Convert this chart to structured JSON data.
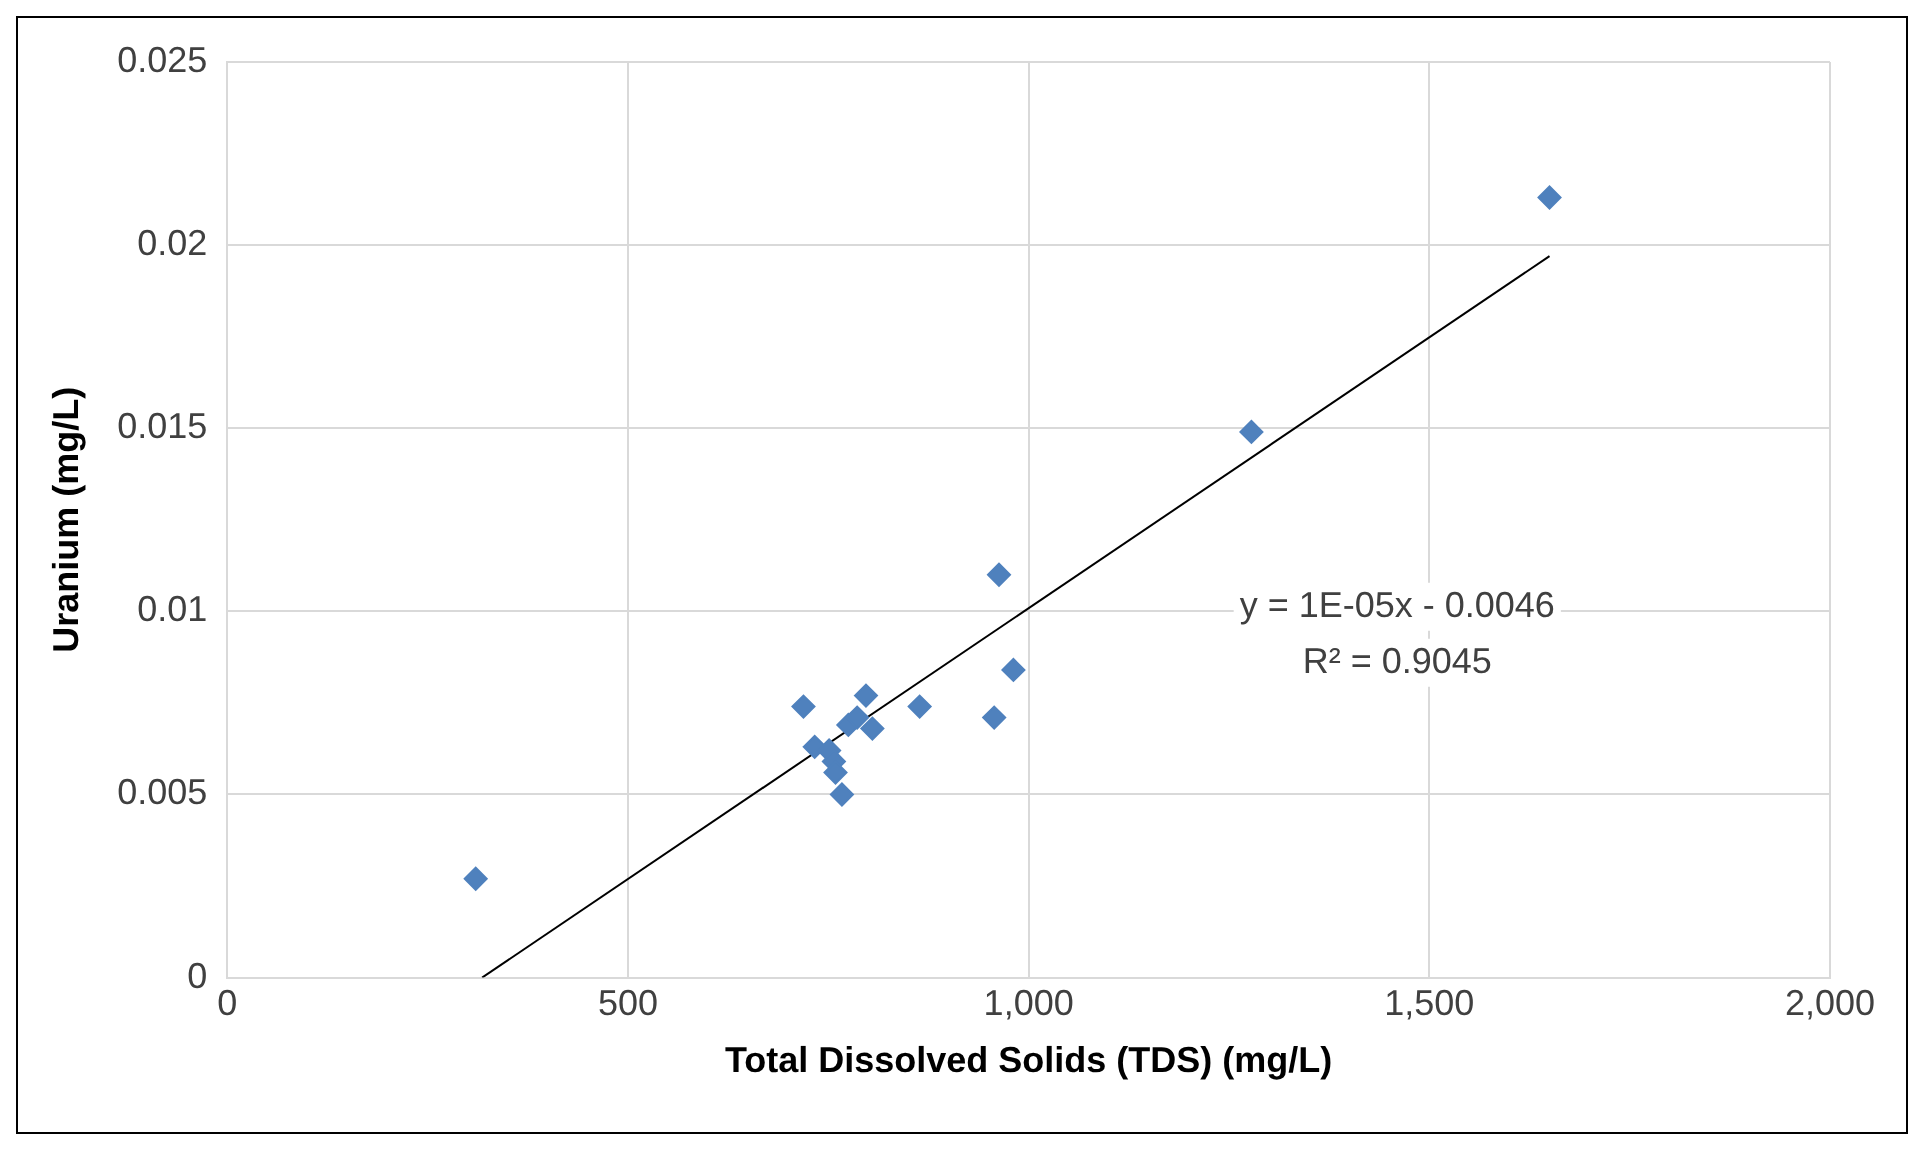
{
  "chart_data": {
    "type": "scatter",
    "xlabel": "Total Dissolved Solids (TDS) (mg/L)",
    "ylabel": "Uranium (mg/L)",
    "x": [
      310,
      719,
      733,
      751,
      757,
      759,
      767,
      775,
      786,
      797,
      805,
      864,
      957,
      963,
      981,
      1278,
      1650
    ],
    "series": [
      {
        "color": "#4f81bd",
        "values": [
          0.0027,
          0.0074,
          0.0063,
          0.0062,
          0.0059,
          0.0056,
          0.005,
          0.0069,
          0.0071,
          0.0077,
          0.0068,
          0.0074,
          0.0071,
          0.011,
          0.0084,
          0.0149,
          0.0213
        ],
        "marker": "diamond"
      },
      {
        "type": "line",
        "color": "#000000",
        "x": [
          318,
          1650
        ],
        "values": [
          0,
          0.0197
        ],
        "marker": "none",
        "line_style": "solid"
      }
    ],
    "xlim": [
      0,
      2000
    ],
    "xticks": [
      0,
      500,
      {
        "value": 1000,
        "label": "1,000"
      },
      {
        "value": 1500,
        "label": "1,500"
      },
      {
        "value": 2000,
        "label": "2,000"
      }
    ],
    "ylim": [
      0,
      0.025
    ],
    "yticks": [
      0,
      0.005,
      0.01,
      0.015,
      0.02,
      0.025
    ],
    "grid": true,
    "legend": false,
    "annotations": [
      "y = 1E-05x - 0.0046",
      "R² = 0.9045"
    ]
  }
}
